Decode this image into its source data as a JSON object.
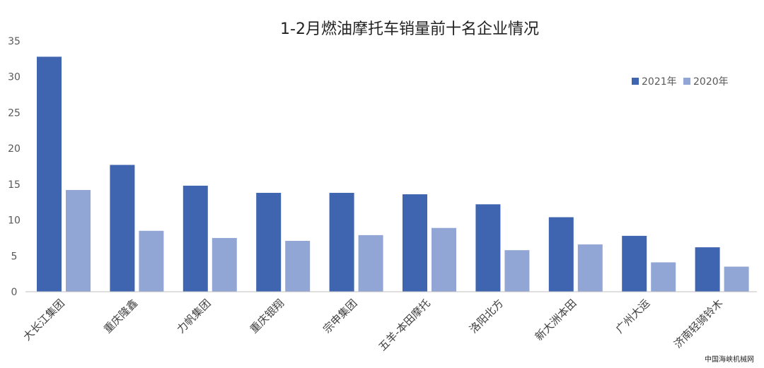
{
  "chart_data": {
    "type": "bar",
    "title": "1-2月燃油摩托车销量前十名企业情况",
    "categories": [
      "大长江集团",
      "重庆隆鑫",
      "力帆集团",
      "重庆银翔",
      "宗申集团",
      "五羊-本田摩托",
      "洛阳北方",
      "新大洲本田",
      "广州大运",
      "济南轻骑铃木"
    ],
    "series": [
      {
        "name": "2021年",
        "color": "#3f65b0",
        "values": [
          32.8,
          17.7,
          14.8,
          13.8,
          13.8,
          13.6,
          12.2,
          10.4,
          7.8,
          6.2
        ]
      },
      {
        "name": "2020年",
        "color": "#92a6d6",
        "values": [
          14.2,
          8.5,
          7.5,
          7.1,
          7.9,
          8.9,
          5.8,
          6.6,
          4.1,
          3.5
        ]
      }
    ],
    "ylim": [
      0,
      35
    ],
    "yticks": [
      "0",
      "5",
      "10",
      "15",
      "20",
      "25",
      "30",
      "35"
    ],
    "legend_position": "top-right",
    "grid": false
  },
  "watermark": "中国海峡机械网"
}
